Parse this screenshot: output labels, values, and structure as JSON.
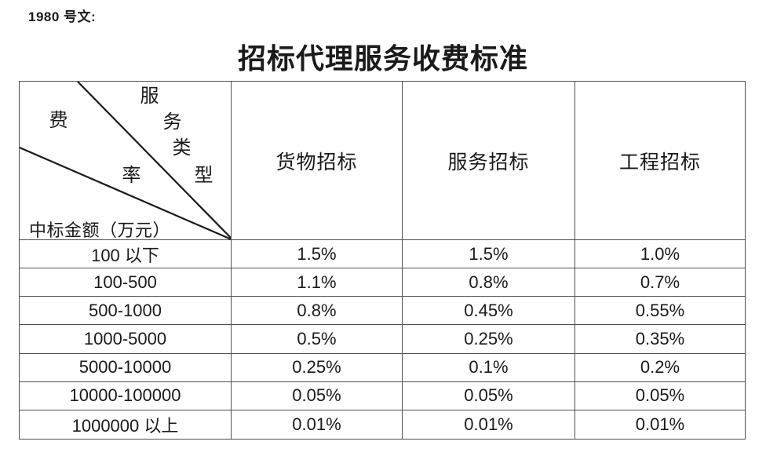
{
  "page": {
    "doc_label": "1980 号文:",
    "title": "招标代理服务收费标准"
  },
  "table": {
    "corner": {
      "service_type_chars": [
        "服",
        "务",
        "类",
        "型"
      ],
      "fee_rate_chars": [
        "费",
        "率"
      ],
      "row_axis_label": "中标金额（万元）"
    },
    "columns": [
      "货物招标",
      "服务招标",
      "工程招标"
    ],
    "rows": [
      {
        "range": "100 以下",
        "values": [
          "1.5%",
          "1.5%",
          "1.0%"
        ]
      },
      {
        "range": "100-500",
        "values": [
          "1.1%",
          "0.8%",
          "0.7%"
        ]
      },
      {
        "range": "500-1000",
        "values": [
          "0.8%",
          "0.45%",
          "0.55%"
        ]
      },
      {
        "range": "1000-5000",
        "values": [
          "0.5%",
          "0.25%",
          "0.35%"
        ]
      },
      {
        "range": "5000-10000",
        "values": [
          "0.25%",
          "0.1%",
          "0.2%"
        ]
      },
      {
        "range": "10000-100000",
        "values": [
          "0.05%",
          "0.05%",
          "0.05%"
        ]
      },
      {
        "range": "1000000 以上",
        "values": [
          "0.01%",
          "0.01%",
          "0.01%"
        ]
      }
    ]
  },
  "colors": {
    "text": "#1a1a1a",
    "border": "#4f4f4f",
    "diagonal": "#1a1a1a",
    "background": "#ffffff"
  }
}
